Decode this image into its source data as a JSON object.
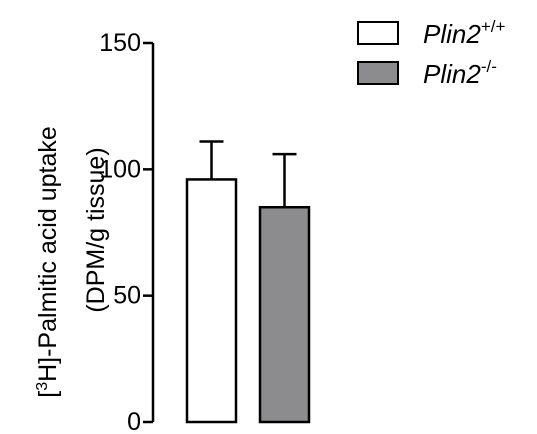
{
  "chart_data": {
    "type": "bar",
    "categories": [
      "Plin2+/+",
      "Plin2-/-"
    ],
    "values": [
      96,
      85
    ],
    "errors": [
      15,
      21
    ],
    "ylim": [
      0,
      150
    ],
    "yticks": [
      0,
      50,
      100,
      150
    ],
    "ylabel_line1_prefix": "[",
    "ylabel_line1_sup": "3",
    "ylabel_line1_rest": "H]-Palmitic acid uptake",
    "ylabel_line2": "(DPM/g tissue)",
    "legend_placement": "top-right",
    "legend": [
      {
        "base": "Plin2",
        "sup": "+/+",
        "fill": "#ffffff"
      },
      {
        "base": "Plin2",
        "sup": "-/-",
        "fill": "#8c8c8f"
      }
    ],
    "bar_fills": [
      "#ffffff",
      "#8c8c8f"
    ]
  }
}
